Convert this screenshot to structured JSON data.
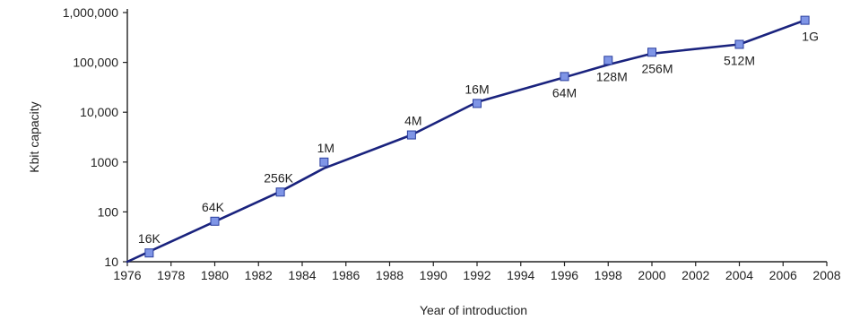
{
  "chart_data": {
    "type": "line",
    "title": "",
    "xlabel": "Year of introduction",
    "ylabel": "Kbit capacity",
    "yscale": "log",
    "xlim": [
      1976,
      2008
    ],
    "ylim": [
      10,
      1000000
    ],
    "grid": false,
    "legend": "none",
    "xticks": [
      1976,
      1978,
      1980,
      1982,
      1984,
      1986,
      1988,
      1990,
      1992,
      1994,
      1996,
      1998,
      2000,
      2002,
      2004,
      2006,
      2008
    ],
    "xtick_labels": [
      "1976",
      "1978",
      "1980",
      "1982",
      "1984",
      "1986",
      "1988",
      "1990",
      "1992",
      "1994",
      "1996",
      "1998",
      "2000",
      "2002",
      "2004",
      "2006",
      "2008"
    ],
    "yticks": [
      10,
      100,
      1000,
      10000,
      100000,
      1000000
    ],
    "ytick_labels": [
      "10",
      "100",
      "1000",
      "10,000",
      "100,000",
      "1,000,000"
    ],
    "line": {
      "x": [
        1976,
        1977,
        1980,
        1983,
        1985,
        1989,
        1992,
        1996,
        1998,
        2000,
        2004,
        2007
      ],
      "y": [
        10,
        16,
        64,
        256,
        750,
        3500,
        16000,
        50000,
        90000,
        150000,
        230000,
        700000
      ]
    },
    "points": [
      {
        "x": 1977,
        "y": 15,
        "label": "16K"
      },
      {
        "x": 1980,
        "y": 65,
        "label": "64K"
      },
      {
        "x": 1983,
        "y": 250,
        "label": "256K"
      },
      {
        "x": 1985,
        "y": 1000,
        "label": "1M"
      },
      {
        "x": 1989,
        "y": 3500,
        "label": "4M"
      },
      {
        "x": 1992,
        "y": 15000,
        "label": "16M"
      },
      {
        "x": 1996,
        "y": 52000,
        "label": "64M"
      },
      {
        "x": 1998,
        "y": 110000,
        "label": "128M"
      },
      {
        "x": 2000,
        "y": 160000,
        "label": "256M"
      },
      {
        "x": 2004,
        "y": 230000,
        "label": "512M"
      },
      {
        "x": 2007,
        "y": 700000,
        "label": "1G"
      }
    ]
  },
  "colors": {
    "line": "#1a237e",
    "marker_fill": "#7f95e6",
    "marker_stroke": "#2a3e9e",
    "axis": "#222222"
  }
}
